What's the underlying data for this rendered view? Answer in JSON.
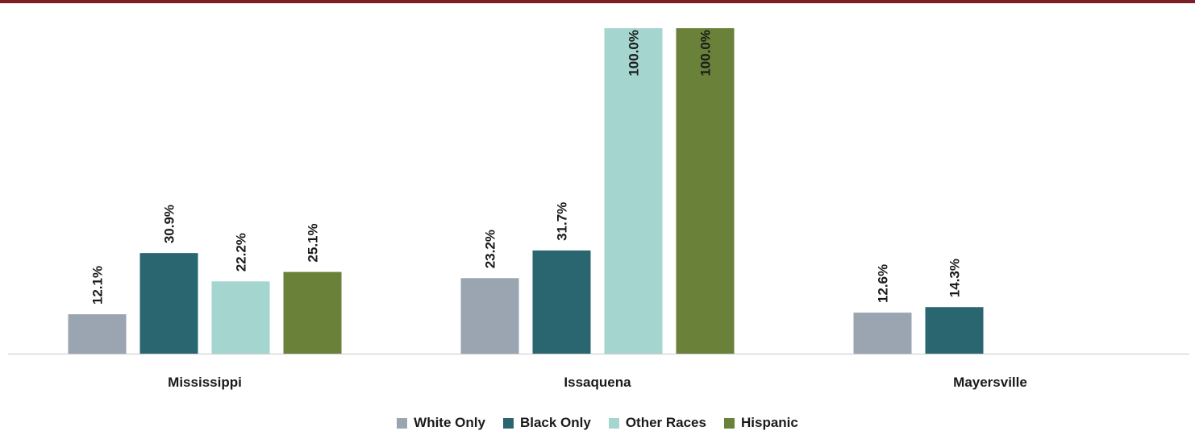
{
  "colors": {
    "top_bar": "#7a1f24",
    "axis": "#c8c8c8",
    "series": [
      "#9aa5b1",
      "#2a6670",
      "#a4d5cf",
      "#6a8139"
    ]
  },
  "chart_data": {
    "type": "bar",
    "categories": [
      "Mississippi",
      "Issaquena",
      "Mayersville"
    ],
    "series": [
      {
        "name": "White Only",
        "values": [
          12.1,
          23.2,
          12.6
        ],
        "labels": [
          "12.1%",
          "23.2%",
          "12.6%"
        ]
      },
      {
        "name": "Black Only",
        "values": [
          30.9,
          31.7,
          14.3
        ],
        "labels": [
          "30.9%",
          "31.7%",
          "14.3%"
        ]
      },
      {
        "name": "Other Races",
        "values": [
          22.2,
          100.0,
          null
        ],
        "labels": [
          "22.2%",
          "100.0%",
          ""
        ]
      },
      {
        "name": "Hispanic",
        "values": [
          25.1,
          100.0,
          null
        ],
        "labels": [
          "25.1%",
          "100.0%",
          ""
        ]
      }
    ],
    "ylim": [
      0,
      100
    ],
    "grid": false,
    "legend_position": "bottom",
    "data_labels": "rotated-vertical"
  }
}
